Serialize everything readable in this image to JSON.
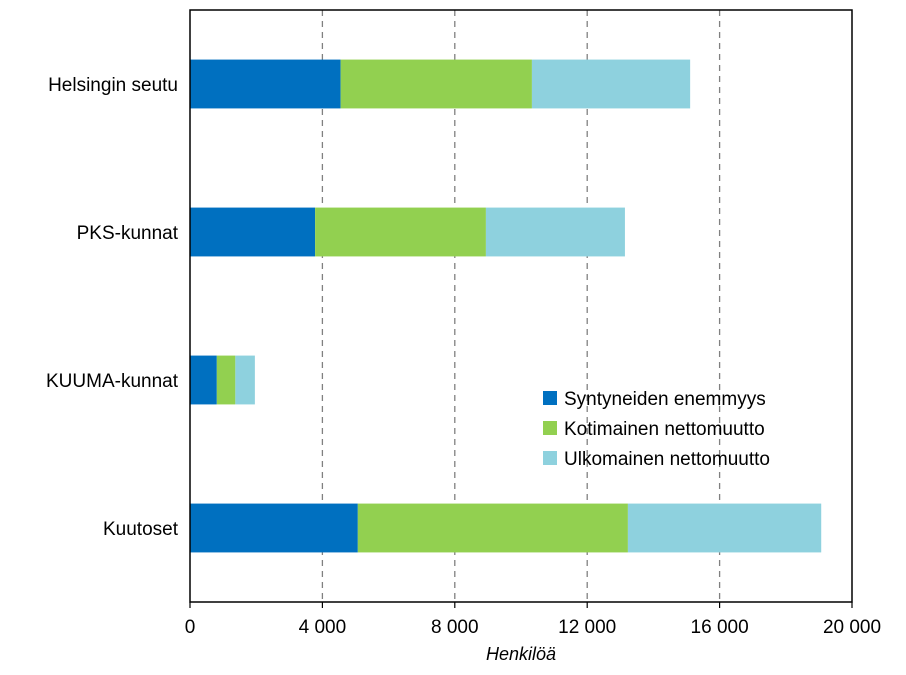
{
  "chart_data": {
    "type": "bar",
    "orientation": "horizontal",
    "stacked": true,
    "categories": [
      "Helsingin seutu",
      "PKS-kunnat",
      "KUUMA-kunnat",
      "Kuutoset"
    ],
    "series": [
      {
        "name": "Syntyneiden enemmyys",
        "color": "#0070C0",
        "values": [
          4550,
          3780,
          810,
          5070
        ]
      },
      {
        "name": "Kotimainen nettomuutto",
        "color": "#92D050",
        "values": [
          5780,
          5160,
          560,
          8160
        ]
      },
      {
        "name": "Ulkomainen nettomuutto",
        "color": "#8ED1DE",
        "values": [
          4780,
          4200,
          590,
          5840
        ]
      }
    ],
    "xlabel": "Henkilöä",
    "ylabel": "",
    "xlim": [
      0,
      20000
    ],
    "x_ticks": [
      0,
      4000,
      8000,
      12000,
      16000,
      20000
    ],
    "x_tick_labels": [
      "0",
      "4 000",
      "8 000",
      "12 000",
      "16 000",
      "20 000"
    ],
    "grid": "vertical dashed",
    "legend_position": "inside-lower-right"
  }
}
